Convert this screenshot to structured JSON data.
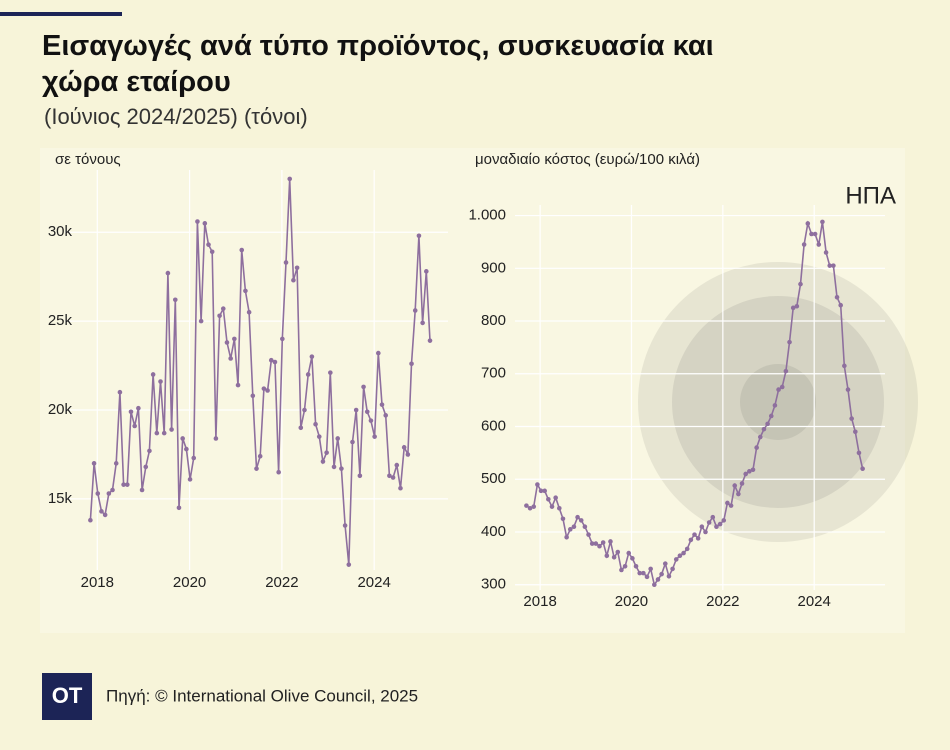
{
  "title": "Εισαγωγές ανά τύπο προϊόντος, συσκευασία και χώρα εταίρου",
  "subtitle": "(Ιούνιος 2024/2025) (τόνοι)",
  "source": "Πηγή: © International Olive Council, 2025",
  "logo": "OT",
  "chart_data": [
    {
      "type": "line",
      "ylabel": "σε τόνους",
      "color": "#8e6f9e",
      "xlim": [
        2017.3,
        2025.6
      ],
      "xticks": [
        2018,
        2020,
        2022,
        2024
      ],
      "ylim": [
        11000,
        33500
      ],
      "yticks": [
        {
          "value": 15000,
          "label": "15k"
        },
        {
          "value": 20000,
          "label": "20k"
        },
        {
          "value": 25000,
          "label": "25k"
        },
        {
          "value": 30000,
          "label": "30k"
        }
      ],
      "x": [
        2017.85,
        2017.93,
        2018.01,
        2018.09,
        2018.17,
        2018.25,
        2018.33,
        2018.41,
        2018.49,
        2018.57,
        2018.65,
        2018.73,
        2018.81,
        2018.89,
        2018.97,
        2019.05,
        2019.13,
        2019.21,
        2019.29,
        2019.37,
        2019.45,
        2019.53,
        2019.61,
        2019.69,
        2019.77,
        2019.85,
        2019.93,
        2020.01,
        2020.09,
        2020.17,
        2020.25,
        2020.33,
        2020.41,
        2020.49,
        2020.57,
        2020.65,
        2020.73,
        2020.81,
        2020.89,
        2020.97,
        2021.05,
        2021.13,
        2021.21,
        2021.29,
        2021.37,
        2021.45,
        2021.53,
        2021.61,
        2021.69,
        2021.77,
        2021.85,
        2021.93,
        2022.01,
        2022.09,
        2022.17,
        2022.25,
        2022.33,
        2022.41,
        2022.49,
        2022.57,
        2022.65,
        2022.73,
        2022.81,
        2022.89,
        2022.97,
        2023.05,
        2023.13,
        2023.21,
        2023.29,
        2023.37,
        2023.45,
        2023.53,
        2023.61,
        2023.69,
        2023.77,
        2023.85,
        2023.93,
        2024.01,
        2024.09,
        2024.17,
        2024.25,
        2024.33,
        2024.41,
        2024.49,
        2024.57,
        2024.65,
        2024.73,
        2024.81,
        2024.89,
        2024.97,
        2025.05,
        2025.13,
        2025.21
      ],
      "values": [
        13800,
        17000,
        15300,
        14300,
        14100,
        15300,
        15500,
        17000,
        21000,
        15800,
        15800,
        19900,
        19100,
        20100,
        15500,
        16800,
        17700,
        22000,
        18700,
        21600,
        18700,
        27700,
        18900,
        26200,
        14500,
        18400,
        17800,
        16100,
        17300,
        30600,
        25000,
        30500,
        29300,
        28900,
        18400,
        25300,
        25700,
        23800,
        22900,
        24000,
        21400,
        29000,
        26700,
        25500,
        20800,
        16700,
        17400,
        21200,
        21100,
        22800,
        22700,
        16500,
        24000,
        28300,
        33000,
        27300,
        28000,
        19000,
        20000,
        22000,
        23000,
        19200,
        18500,
        17100,
        17600,
        22100,
        16800,
        18400,
        16700,
        13500,
        11300,
        18200,
        20000,
        16300,
        21300,
        19900,
        19400,
        18500,
        23200,
        20300,
        19700,
        16300,
        16200,
        16900,
        15600,
        17900,
        17500,
        22600,
        25600,
        29800,
        24900,
        27800,
        23900
      ]
    },
    {
      "type": "line",
      "ylabel": "μοναδιαίο κόστος (ευρώ/100 κιλά)",
      "annotation": "ΗΠΑ",
      "color": "#8e6f9e",
      "xlim": [
        2017.45,
        2025.55
      ],
      "xticks": [
        2018,
        2020,
        2022,
        2024
      ],
      "ylim": [
        290,
        1020
      ],
      "yticks": [
        300,
        400,
        500,
        600,
        700,
        800,
        900,
        {
          "value": 1000,
          "label": "1.000"
        }
      ],
      "x": [
        2017.7,
        2017.78,
        2017.86,
        2017.94,
        2018.02,
        2018.1,
        2018.18,
        2018.26,
        2018.34,
        2018.42,
        2018.5,
        2018.58,
        2018.66,
        2018.74,
        2018.82,
        2018.9,
        2018.98,
        2019.06,
        2019.14,
        2019.22,
        2019.3,
        2019.38,
        2019.46,
        2019.54,
        2019.62,
        2019.7,
        2019.78,
        2019.86,
        2019.94,
        2020.02,
        2020.1,
        2020.18,
        2020.26,
        2020.34,
        2020.42,
        2020.5,
        2020.58,
        2020.66,
        2020.74,
        2020.82,
        2020.9,
        2020.98,
        2021.06,
        2021.14,
        2021.22,
        2021.3,
        2021.38,
        2021.46,
        2021.54,
        2021.62,
        2021.7,
        2021.78,
        2021.86,
        2021.94,
        2022.02,
        2022.1,
        2022.18,
        2022.26,
        2022.34,
        2022.42,
        2022.5,
        2022.58,
        2022.66,
        2022.74,
        2022.82,
        2022.9,
        2022.98,
        2023.06,
        2023.14,
        2023.22,
        2023.3,
        2023.38,
        2023.46,
        2023.54,
        2023.62,
        2023.7,
        2023.78,
        2023.86,
        2023.94,
        2024.02,
        2024.1,
        2024.18,
        2024.26,
        2024.34,
        2024.42,
        2024.5,
        2024.58,
        2024.66,
        2024.74,
        2024.82,
        2024.9,
        2024.98,
        2025.06
      ],
      "values": [
        450,
        445,
        448,
        490,
        478,
        478,
        462,
        448,
        465,
        445,
        425,
        390,
        405,
        410,
        428,
        422,
        410,
        395,
        378,
        378,
        373,
        380,
        355,
        382,
        352,
        362,
        328,
        335,
        360,
        350,
        335,
        322,
        322,
        315,
        330,
        300,
        310,
        320,
        340,
        316,
        330,
        348,
        355,
        360,
        368,
        385,
        395,
        388,
        410,
        400,
        418,
        428,
        410,
        415,
        422,
        455,
        450,
        488,
        472,
        492,
        510,
        515,
        518,
        560,
        580,
        595,
        605,
        620,
        640,
        670,
        675,
        705,
        760,
        825,
        828,
        870,
        945,
        985,
        965,
        965,
        945,
        988,
        930,
        905,
        905,
        845,
        830,
        715,
        670,
        615,
        590,
        550,
        520
      ]
    }
  ]
}
